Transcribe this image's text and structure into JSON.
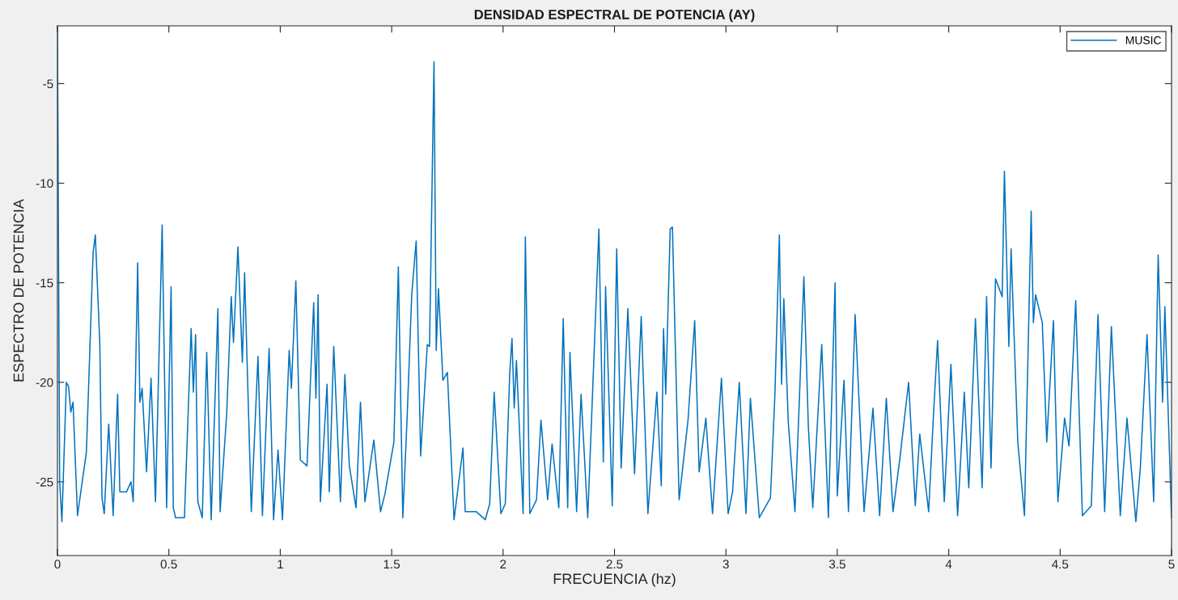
{
  "chart_data": {
    "type": "line",
    "title": "DENSIDAD ESPECTRAL DE POTENCIA (AY)",
    "xlabel": "FRECUENCIA (hz)",
    "ylabel": "ESPECTRO DE POTENCIA",
    "xlim": [
      0,
      5
    ],
    "ylim": [
      -28.7,
      -2.1
    ],
    "xticks": [
      0,
      0.5,
      1,
      1.5,
      2,
      2.5,
      3,
      3.5,
      4,
      4.5,
      5
    ],
    "yticks": [
      -25,
      -20,
      -15,
      -10,
      -5
    ],
    "grid": false,
    "legend": "top right",
    "marker": "none",
    "line_style": "solid",
    "x": [
      0,
      0.01,
      0.02,
      0.04,
      0.05,
      0.06,
      0.07,
      0.09,
      0.11,
      0.13,
      0.16,
      0.17,
      0.19,
      0.2,
      0.21,
      0.23,
      0.25,
      0.27,
      0.28,
      0.31,
      0.33,
      0.34,
      0.36,
      0.37,
      0.38,
      0.4,
      0.42,
      0.44,
      0.47,
      0.49,
      0.51,
      0.52,
      0.53,
      0.57,
      0.6,
      0.61,
      0.62,
      0.63,
      0.65,
      0.67,
      0.69,
      0.72,
      0.73,
      0.76,
      0.78,
      0.79,
      0.81,
      0.83,
      0.84,
      0.87,
      0.9,
      0.92,
      0.95,
      0.97,
      0.99,
      1.01,
      1.04,
      1.05,
      1.07,
      1.09,
      1.12,
      1.15,
      1.16,
      1.17,
      1.18,
      1.21,
      1.22,
      1.24,
      1.27,
      1.29,
      1.31,
      1.34,
      1.36,
      1.38,
      1.42,
      1.45,
      1.47,
      1.51,
      1.53,
      1.55,
      1.57,
      1.59,
      1.61,
      1.63,
      1.66,
      1.67,
      1.69,
      1.7,
      1.71,
      1.73,
      1.75,
      1.78,
      1.82,
      1.83,
      1.88,
      1.92,
      1.94,
      1.96,
      1.99,
      2.01,
      2.03,
      2.04,
      2.05,
      2.06,
      2.09,
      2.1,
      2.12,
      2.15,
      2.17,
      2.2,
      2.22,
      2.25,
      2.27,
      2.29,
      2.3,
      2.33,
      2.35,
      2.38,
      2.43,
      2.45,
      2.46,
      2.49,
      2.51,
      2.53,
      2.56,
      2.59,
      2.62,
      2.65,
      2.69,
      2.71,
      2.72,
      2.73,
      2.75,
      2.76,
      2.79,
      2.83,
      2.86,
      2.88,
      2.91,
      2.94,
      2.98,
      3.01,
      3.03,
      3.06,
      3.09,
      3.11,
      3.15,
      3.2,
      3.22,
      3.24,
      3.25,
      3.26,
      3.28,
      3.31,
      3.33,
      3.35,
      3.37,
      3.39,
      3.43,
      3.46,
      3.49,
      3.5,
      3.53,
      3.55,
      3.58,
      3.62,
      3.66,
      3.69,
      3.72,
      3.75,
      3.78,
      3.82,
      3.85,
      3.87,
      3.91,
      3.93,
      3.95,
      3.98,
      4.01,
      4.04,
      4.07,
      4.09,
      4.12,
      4.15,
      4.17,
      4.19,
      4.21,
      4.24,
      4.25,
      4.27,
      4.28,
      4.31,
      4.34,
      4.37,
      4.38,
      4.39,
      4.42,
      4.44,
      4.47,
      4.49,
      4.52,
      4.54,
      4.57,
      4.6,
      4.64,
      4.67,
      4.7,
      4.73,
      4.77,
      4.8,
      4.84,
      4.86,
      4.89,
      4.92,
      4.94,
      4.96,
      4.97,
      5.0
    ],
    "series": [
      {
        "name": "MUSIC",
        "color": "#0072bd",
        "values": [
          -2.2,
          -25,
          -27.0,
          -20.0,
          -20.2,
          -21.5,
          -21.0,
          -26.7,
          -25.1,
          -23.5,
          -13.5,
          -12.6,
          -18,
          -25.8,
          -26.6,
          -22.1,
          -26.7,
          -20.6,
          -25.5,
          -25.5,
          -25.0,
          -26.0,
          -14.0,
          -21.0,
          -20.3,
          -24.5,
          -19.8,
          -26.0,
          -12.1,
          -26.3,
          -15.2,
          -26.3,
          -26.8,
          -26.8,
          -17.3,
          -20.5,
          -17.6,
          -26.0,
          -26.8,
          -18.5,
          -26.9,
          -16.3,
          -26.5,
          -21.5,
          -15.7,
          -18,
          -13.2,
          -19,
          -14.5,
          -26.5,
          -18.7,
          -26.7,
          -18.3,
          -26.9,
          -23.4,
          -26.9,
          -18.4,
          -20.3,
          -14.9,
          -23.9,
          -24.2,
          -16,
          -20.8,
          -15.6,
          -26.0,
          -20.1,
          -25.5,
          -18.2,
          -26.0,
          -19.6,
          -24.2,
          -26.3,
          -21.0,
          -26.0,
          -22.9,
          -26.5,
          -25.6,
          -23.0,
          -14.2,
          -26.8,
          -21.6,
          -15.6,
          -12.9,
          -23.7,
          -18.1,
          -18.2,
          -3.9,
          -18.4,
          -15.3,
          -19.9,
          -19.5,
          -26.9,
          -23.3,
          -26.5,
          -26.5,
          -26.9,
          -26.1,
          -20.5,
          -26.6,
          -26.1,
          -19.5,
          -17.8,
          -21.3,
          -18.9,
          -26.6,
          -12.7,
          -26.6,
          -25.9,
          -21.9,
          -25.9,
          -23.1,
          -26.3,
          -16.8,
          -26.3,
          -18.5,
          -26.5,
          -20.6,
          -26.8,
          -12.3,
          -24.0,
          -15.2,
          -26.2,
          -13.3,
          -24.3,
          -16.3,
          -24.6,
          -16.7,
          -26.6,
          -20.5,
          -25.2,
          -17.3,
          -20.6,
          -12.3,
          -12.2,
          -25.9,
          -21.9,
          -16.9,
          -24.5,
          -21.8,
          -26.6,
          -19.8,
          -26.6,
          -25.5,
          -20.0,
          -26.6,
          -20.8,
          -26.8,
          -25.8,
          -20.6,
          -12.6,
          -20.1,
          -15.8,
          -22.0,
          -26.5,
          -20.8,
          -14.7,
          -22.2,
          -26.3,
          -18.1,
          -26.8,
          -15.0,
          -25.7,
          -19.9,
          -26.5,
          -16.6,
          -26.5,
          -21.3,
          -26.7,
          -20.8,
          -26.5,
          -23.9,
          -20.0,
          -26.2,
          -22.6,
          -26.5,
          -22.0,
          -17.9,
          -26.0,
          -19.1,
          -26.7,
          -20.5,
          -25.3,
          -16.8,
          -25.3,
          -15.7,
          -24.3,
          -14.8,
          -15.7,
          -9.4,
          -18.2,
          -13.3,
          -23.0,
          -26.7,
          -11.4,
          -17.0,
          -15.6,
          -17.0,
          -23.0,
          -16.9,
          -26.0,
          -21.8,
          -23.2,
          -15.9,
          -26.7,
          -26.2,
          -16.6,
          -26.5,
          -17.2,
          -26.7,
          -21.8,
          -27.0,
          -24.3,
          -17.6,
          -26.0,
          -13.6,
          -21.0,
          -16.2,
          -26.8
        ]
      }
    ]
  }
}
